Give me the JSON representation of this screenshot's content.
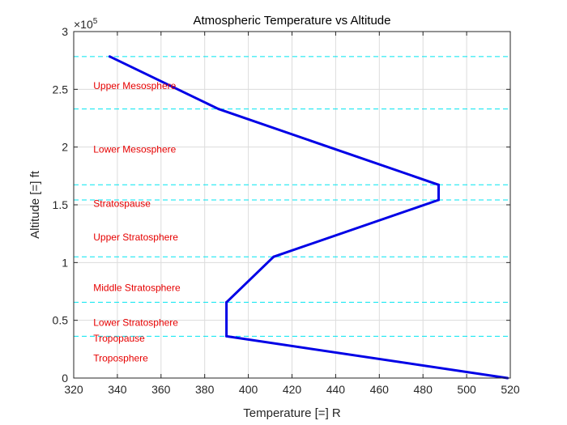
{
  "chart_data": {
    "type": "line",
    "title": "Atmospheric Temperature vs Altitude",
    "xlabel": "Temperature [=] R",
    "ylabel": "Altitude [=] ft",
    "y_exponent_label": "×10",
    "y_exponent_power": "5",
    "xlim": [
      320,
      520
    ],
    "ylim": [
      0,
      300000
    ],
    "x_ticks": [
      320,
      340,
      360,
      380,
      400,
      420,
      440,
      460,
      480,
      500,
      520
    ],
    "y_ticks": [
      0,
      50000,
      100000,
      150000,
      200000,
      250000,
      300000
    ],
    "y_tick_labels": [
      "0",
      "0.5",
      "1",
      "1.5",
      "2",
      "2.5",
      "3"
    ],
    "grid": true,
    "series": [
      {
        "color": "#0000e6",
        "x": [
          518.7,
          389.97,
          389.97,
          411.57,
          487.17,
          487.17,
          386.37,
          336.5
        ],
        "y": [
          0,
          36152,
          65617,
          104987,
          154199,
          167323,
          232940,
          278386
        ]
      }
    ],
    "boundary_lines": {
      "color": "#00e5f0",
      "style": "dashed",
      "y": [
        36152,
        65617,
        104987,
        154199,
        167323,
        232940,
        278386
      ]
    },
    "annotations": {
      "color": "#e60000",
      "items": [
        {
          "text": "Upper Mesosphere",
          "x": 329,
          "y": 253000
        },
        {
          "text": "Lower Mesosphere",
          "x": 329,
          "y": 198000
        },
        {
          "text": "Stratospause",
          "x": 329,
          "y": 151000
        },
        {
          "text": "Upper Stratosphere",
          "x": 329,
          "y": 122000
        },
        {
          "text": "Middle Stratosphere",
          "x": 329,
          "y": 78000
        },
        {
          "text": "Lower Stratosphere",
          "x": 329,
          "y": 48000
        },
        {
          "text": "Tropopause",
          "x": 329,
          "y": 34500
        },
        {
          "text": "Troposphere",
          "x": 329,
          "y": 17000
        }
      ]
    }
  }
}
